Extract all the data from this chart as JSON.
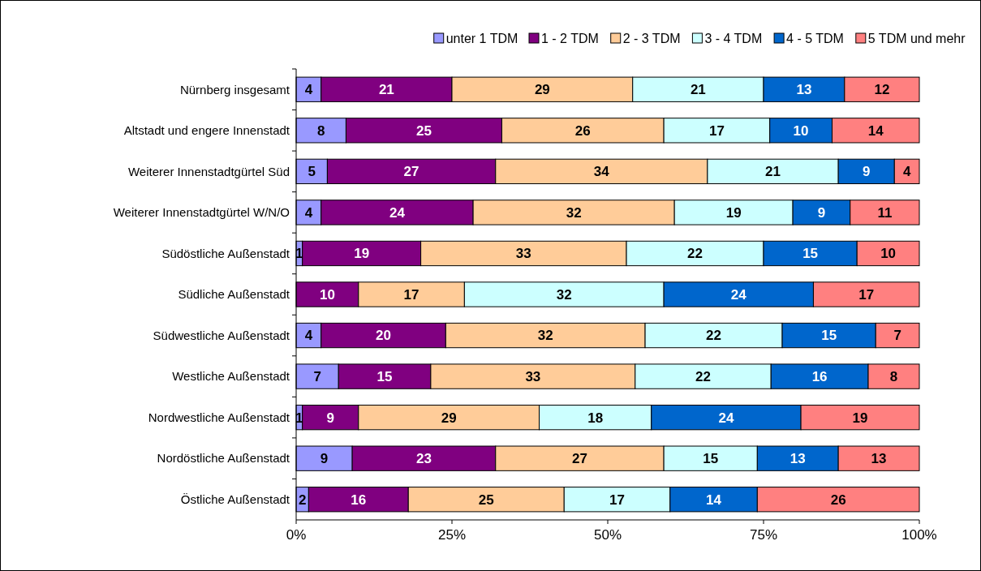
{
  "chart_data": {
    "type": "bar",
    "orientation": "horizontal",
    "stacked": true,
    "legend": "top",
    "grid": false,
    "categories": [
      "Nürnberg insgesamt",
      "Altstadt und engere Innenstadt",
      "Weiterer Innenstadtgürtel Süd",
      "Weiterer Innenstadtgürtel W/N/O",
      "Südöstliche Außenstadt",
      "Südliche Außenstadt",
      "Südwestliche Außenstadt",
      "Westliche Außenstadt",
      "Nordwestliche Außenstadt",
      "Nordöstliche Außenstadt",
      "Östliche Außenstadt"
    ],
    "xlim": [
      0,
      100
    ],
    "xticks": [
      {
        "value": 0,
        "label": "0%"
      },
      {
        "value": 25,
        "label": "25%"
      },
      {
        "value": 50,
        "label": "50%"
      },
      {
        "value": 75,
        "label": "75%"
      },
      {
        "value": 100,
        "label": "100%"
      }
    ],
    "series": [
      {
        "name": "unter 1 TDM",
        "color": "#9999ff",
        "values": [
          4,
          8,
          5,
          4.0,
          1,
          0,
          4,
          6.8,
          1,
          9,
          2
        ],
        "value_labels": [
          "4",
          "8",
          "5",
          "4",
          "1",
          null,
          "4",
          "7",
          "1",
          "9",
          "2"
        ]
      },
      {
        "name": "1 - 2 TDM",
        "color": "#800080",
        "values": [
          21,
          25,
          27,
          24.4,
          19,
          10,
          20,
          14.8,
          9,
          23,
          16
        ],
        "value_labels": [
          "21",
          "25",
          "27",
          "24",
          "19",
          "10",
          "20",
          "15",
          "9",
          "23",
          "16"
        ]
      },
      {
        "name": "2 - 3 TDM",
        "color": "#ffcc99",
        "values": [
          29,
          26,
          34,
          32.3,
          33,
          17,
          32,
          32.8,
          29,
          27,
          25
        ],
        "value_labels": [
          "29",
          "26",
          "34",
          "32",
          "33",
          "17",
          "32",
          "33",
          "29",
          "27",
          "25"
        ]
      },
      {
        "name": "3 - 4 TDM",
        "color": "#ccffff",
        "values": [
          21,
          17,
          21,
          19.0,
          22,
          32,
          22,
          21.8,
          18,
          15,
          17
        ],
        "value_labels": [
          "21",
          "17",
          "21",
          "19",
          "22",
          "32",
          "22",
          "22",
          "18",
          "15",
          "17"
        ]
      },
      {
        "name": "4 - 5 TDM",
        "color": "#0066cc",
        "values": [
          13,
          10,
          9,
          9.2,
          15,
          24,
          15,
          15.6,
          24,
          13,
          14
        ],
        "value_labels": [
          "13",
          "10",
          "9",
          "9",
          "15",
          "24",
          "15",
          "16",
          "24",
          "13",
          "14"
        ]
      },
      {
        "name": "5 TDM und mehr",
        "color": "#ff8080",
        "values": [
          12,
          14,
          4,
          11.1,
          10,
          17,
          7,
          8.2,
          19,
          13,
          26
        ],
        "value_labels": [
          "12",
          "14",
          "4",
          "11",
          "10",
          "17",
          "7",
          "8",
          "19",
          "13",
          "26"
        ]
      }
    ]
  }
}
